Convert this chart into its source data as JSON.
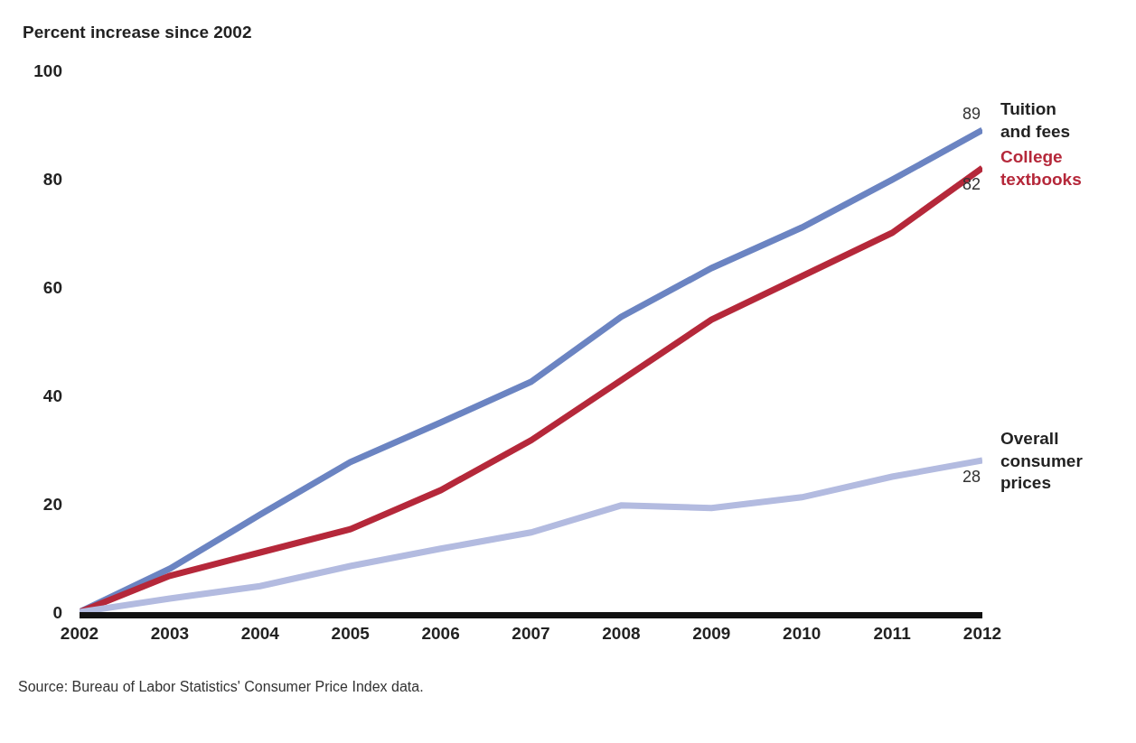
{
  "chart_data": {
    "type": "line",
    "ylabel": "Percent increase since 2002",
    "x": [
      2002,
      2003,
      2004,
      2005,
      2006,
      2007,
      2008,
      2009,
      2010,
      2011,
      2012
    ],
    "series": [
      {
        "name": "Tuition\nand fees",
        "color": "#6b84c2",
        "values": [
          0,
          8,
          18,
          27.7,
          35,
          42.5,
          54.5,
          63.5,
          71,
          79.8,
          89
        ],
        "value_labels": [
          null,
          null,
          null,
          null,
          null,
          null,
          null,
          null,
          null,
          null,
          "89"
        ]
      },
      {
        "name": "College\ntextbooks",
        "color": "#b5283a",
        "values": [
          0,
          6.7,
          11,
          15.3,
          22.5,
          31.7,
          42.8,
          54,
          62,
          70,
          82
        ],
        "value_labels": [
          null,
          null,
          null,
          null,
          null,
          null,
          null,
          null,
          null,
          null,
          "82"
        ]
      },
      {
        "name": "Overall\nconsumer\nprices",
        "color": "#b3bbe0",
        "values": [
          0,
          2.5,
          4.8,
          8.5,
          11.7,
          14.7,
          19.7,
          19.2,
          21.2,
          25,
          28
        ],
        "value_labels": [
          null,
          null,
          null,
          null,
          null,
          null,
          null,
          null,
          null,
          null,
          "28"
        ]
      }
    ],
    "xlim": [
      2002,
      2012
    ],
    "xticks": [
      2002,
      2003,
      2004,
      2005,
      2006,
      2007,
      2008,
      2009,
      2010,
      2011,
      2012
    ],
    "ylim": [
      0,
      100
    ],
    "yticks": [
      0,
      20,
      40,
      60,
      80,
      100
    ],
    "legend": false,
    "marker": "none",
    "line_style": "solid",
    "annotations": [
      "Source: Bureau of Labor Statistics' Consumer Price Index data."
    ]
  }
}
